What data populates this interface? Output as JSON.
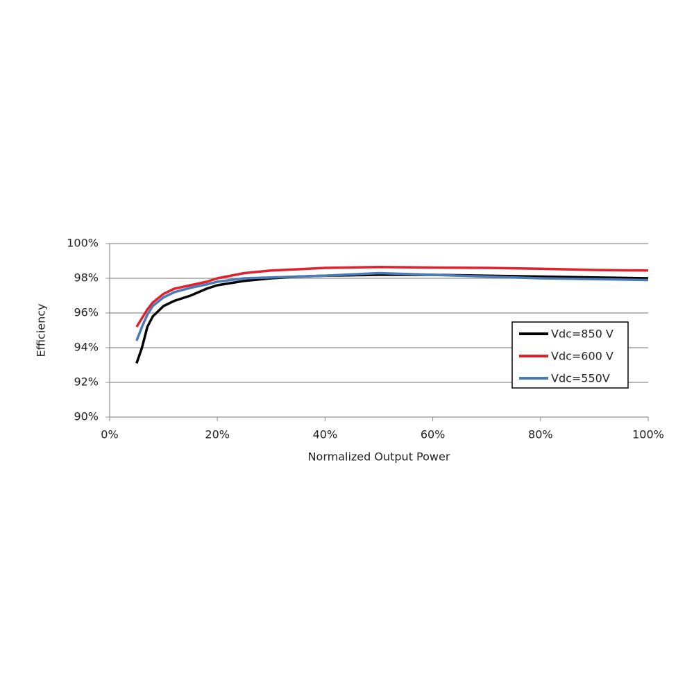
{
  "chart_data": {
    "type": "line",
    "x_label": "Normalized Output Power",
    "y_label": "Efficiency",
    "x": [
      5,
      6,
      7,
      8,
      10,
      12,
      15,
      18,
      20,
      25,
      30,
      35,
      40,
      50,
      60,
      70,
      80,
      90,
      100
    ],
    "series": [
      {
        "name": "Vdc=850 V",
        "color": "#000000",
        "values": [
          93.1,
          94.0,
          95.2,
          95.8,
          96.4,
          96.7,
          97.0,
          97.4,
          97.6,
          97.85,
          98.0,
          98.1,
          98.15,
          98.2,
          98.2,
          98.15,
          98.1,
          98.05,
          98.0
        ]
      },
      {
        "name": "Vdc=600 V",
        "color": "#e0202a",
        "values": [
          95.2,
          95.7,
          96.2,
          96.6,
          97.1,
          97.4,
          97.6,
          97.8,
          98.0,
          98.3,
          98.45,
          98.52,
          98.6,
          98.65,
          98.62,
          98.6,
          98.55,
          98.48,
          98.45
        ]
      },
      {
        "name": "Vdc=550V",
        "color": "#4a7ab8",
        "values": [
          94.4,
          95.2,
          95.9,
          96.4,
          96.9,
          97.2,
          97.45,
          97.65,
          97.8,
          98.0,
          98.05,
          98.1,
          98.15,
          98.3,
          98.2,
          98.1,
          98.0,
          97.95,
          97.9
        ]
      }
    ],
    "xlim": [
      0,
      100
    ],
    "xticks": [
      {
        "value": 0,
        "label": "0%"
      },
      {
        "value": 20,
        "label": "20%"
      },
      {
        "value": 40,
        "label": "40%"
      },
      {
        "value": 60,
        "label": "60%"
      },
      {
        "value": 80,
        "label": "80%"
      },
      {
        "value": 100,
        "label": "100%"
      }
    ],
    "ylim": [
      90,
      100
    ],
    "yticks": [
      {
        "value": 90,
        "label": "90%"
      },
      {
        "value": 92,
        "label": "92%"
      },
      {
        "value": 94,
        "label": "94%"
      },
      {
        "value": 96,
        "label": "96%"
      },
      {
        "value": 98,
        "label": "98%"
      },
      {
        "value": 100,
        "label": "100%"
      }
    ],
    "grid": true,
    "legend_position": "right"
  }
}
